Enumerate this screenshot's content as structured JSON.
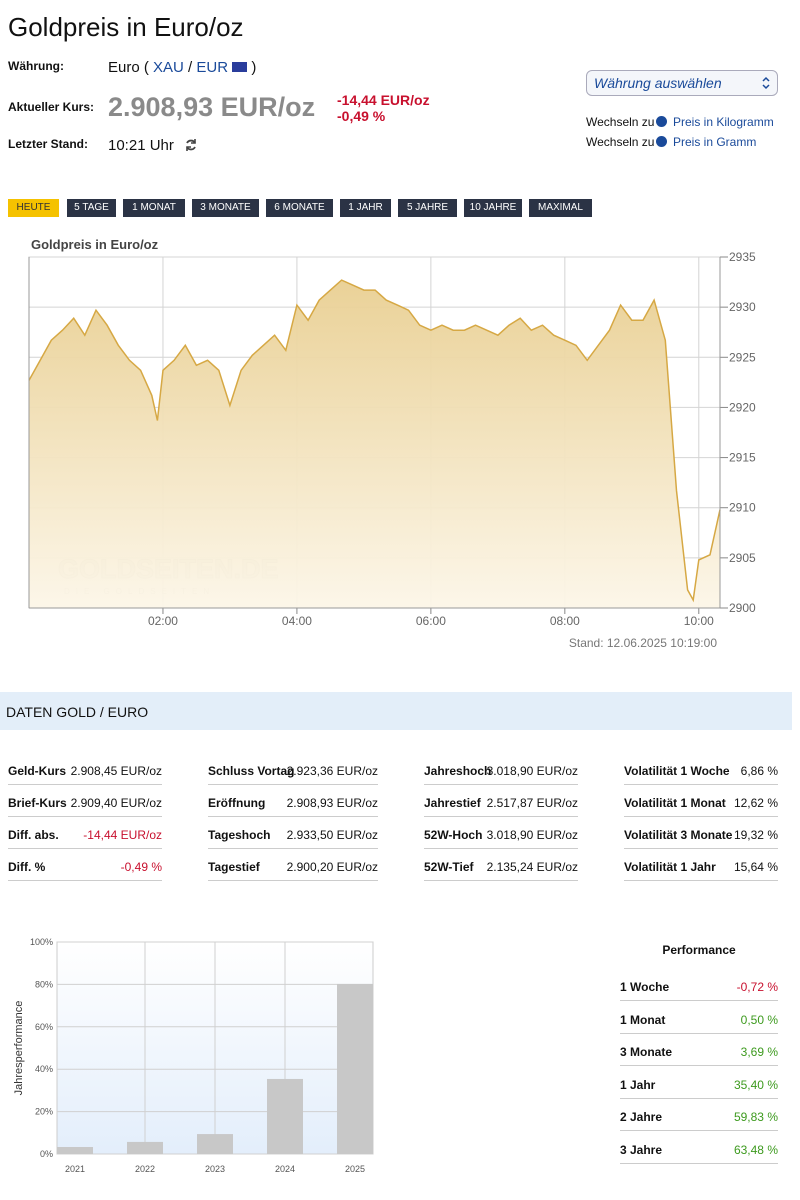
{
  "header": {
    "title": "Goldpreis in Euro/oz",
    "currency_label": "Währung:",
    "currency_prefix": "Euro (",
    "currency_xau": "XAU",
    "currency_sep": "/",
    "currency_eur": "EUR",
    "currency_suffix": ")",
    "price_label": "Aktueller Kurs:",
    "price": "2.908,93 EUR/oz",
    "change_abs": "-14,44 EUR/oz",
    "change_pct": "-0,49 %",
    "time_label": "Letzter Stand:",
    "time": "10:21 Uhr",
    "select": "Währung auswählen",
    "switch": [
      {
        "prefix": "Wechseln zu",
        "link": "Preis in Kilogramm"
      },
      {
        "prefix": "Wechseln zu",
        "link": "Preis in Gramm"
      }
    ]
  },
  "tabs": [
    "HEUTE",
    "5 TAGE",
    "1 MONAT",
    "3 MONATE",
    "6 MONATE",
    "1 JAHR",
    "5 JAHRE",
    "10 JAHRE",
    "MAXIMAL"
  ],
  "section_title": "DATEN GOLD / EURO",
  "data_table": [
    [
      [
        "Geld-Kurs",
        "2.908,45 EUR/oz"
      ],
      [
        "Brief-Kurs",
        "2.909,40 EUR/oz"
      ],
      [
        "Diff. abs.",
        "-14,44 EUR/oz"
      ],
      [
        "Diff. %",
        "-0,49 %"
      ]
    ],
    [
      [
        "Schluss Vortag",
        "2.923,36 EUR/oz"
      ],
      [
        "Eröffnung",
        "2.908,93 EUR/oz"
      ],
      [
        "Tageshoch",
        "2.933,50 EUR/oz"
      ],
      [
        "Tagestief",
        "2.900,20 EUR/oz"
      ]
    ],
    [
      [
        "Jahreshoch",
        "3.018,90 EUR/oz"
      ],
      [
        "Jahrestief",
        "2.517,87 EUR/oz"
      ],
      [
        "52W-Hoch",
        "3.018,90 EUR/oz"
      ],
      [
        "52W-Tief",
        "2.135,24 EUR/oz"
      ]
    ],
    [
      [
        "Volatilität 1 Woche",
        "6,86 %"
      ],
      [
        "Volatilität 1 Monat",
        "12,62 %"
      ],
      [
        "Volatilität 3 Monate",
        "19,32 %"
      ],
      [
        "Volatilität 1 Jahr",
        "15,64 %"
      ]
    ]
  ],
  "performance": {
    "title": "Performance",
    "rows": [
      [
        "1 Woche",
        "-0,72 %"
      ],
      [
        "1 Monat",
        "0,50 %"
      ],
      [
        "3 Monate",
        "3,69 %"
      ],
      [
        "1 Jahr",
        "35,40 %"
      ],
      [
        "2 Jahre",
        "59,83 %"
      ],
      [
        "3 Jahre",
        "63,48 %"
      ]
    ]
  },
  "chart_data": [
    {
      "type": "area",
      "title": "Goldpreis in Euro/oz",
      "watermark": "GOLDSEITEN.DE",
      "watermark_sub": "DIE GOLDSEITEN",
      "note": "Stand: 12.06.2025 10:19:00",
      "color": "#d6a844",
      "x": [
        "00:00",
        "00:10",
        "00:20",
        "00:30",
        "00:40",
        "00:50",
        "01:00",
        "01:10",
        "01:20",
        "01:30",
        "01:40",
        "01:50",
        "01:55",
        "02:00",
        "02:10",
        "02:20",
        "02:30",
        "02:40",
        "02:50",
        "03:00",
        "03:10",
        "03:20",
        "03:30",
        "03:40",
        "03:50",
        "04:00",
        "04:10",
        "04:20",
        "04:30",
        "04:40",
        "04:50",
        "05:00",
        "05:10",
        "05:20",
        "05:30",
        "05:40",
        "05:50",
        "06:00",
        "06:10",
        "06:20",
        "06:30",
        "06:40",
        "06:50",
        "07:00",
        "07:10",
        "07:20",
        "07:30",
        "07:40",
        "07:50",
        "08:00",
        "08:10",
        "08:20",
        "08:30",
        "08:40",
        "08:50",
        "09:00",
        "09:10",
        "09:20",
        "09:30",
        "09:40",
        "09:50",
        "09:55",
        "10:00",
        "10:10",
        "10:19"
      ],
      "values": [
        2922.7,
        2924.7,
        2926.7,
        2927.7,
        2928.9,
        2927.2,
        2929.7,
        2928.2,
        2926.2,
        2924.7,
        2923.7,
        2921.2,
        2918.7,
        2923.7,
        2924.7,
        2926.2,
        2924.2,
        2924.7,
        2923.7,
        2920.2,
        2923.7,
        2925.2,
        2926.2,
        2927.2,
        2925.7,
        2930.2,
        2928.7,
        2930.7,
        2931.7,
        2932.7,
        2932.2,
        2931.7,
        2931.7,
        2930.7,
        2930.2,
        2929.7,
        2928.2,
        2927.7,
        2928.2,
        2927.7,
        2927.7,
        2928.2,
        2927.7,
        2927.2,
        2928.2,
        2928.9,
        2927.7,
        2928.2,
        2927.2,
        2926.7,
        2926.2,
        2924.7,
        2926.2,
        2927.7,
        2930.2,
        2928.7,
        2928.7,
        2930.7,
        2926.7,
        2911.7,
        2901.8,
        2900.8,
        2904.8,
        2905.3,
        2909.8
      ],
      "xlim": [
        "00:00",
        "10:19"
      ],
      "xticks": [
        "02:00",
        "04:00",
        "06:00",
        "08:00",
        "10:00"
      ],
      "ylim": [
        2900,
        2935
      ],
      "yticks": [
        2900,
        2905,
        2910,
        2915,
        2920,
        2925,
        2930,
        2935
      ],
      "grid": true
    },
    {
      "type": "bar",
      "ylabel": "Jahresperformance",
      "color": "#c8c8c8",
      "categories": [
        "2021",
        "2022",
        "2023",
        "2024",
        "2025"
      ],
      "values": [
        3.3,
        5.7,
        9.4,
        35.4,
        80.2
      ],
      "ylim": [
        0,
        100
      ],
      "yticks": [
        {
          "value": 0,
          "label": "0%"
        },
        {
          "value": 20,
          "label": "20%"
        },
        {
          "value": 40,
          "label": "40%"
        },
        {
          "value": 60,
          "label": "60%"
        },
        {
          "value": 80,
          "label": "80%"
        },
        {
          "value": 100,
          "label": "100%"
        }
      ],
      "grid": true
    }
  ]
}
